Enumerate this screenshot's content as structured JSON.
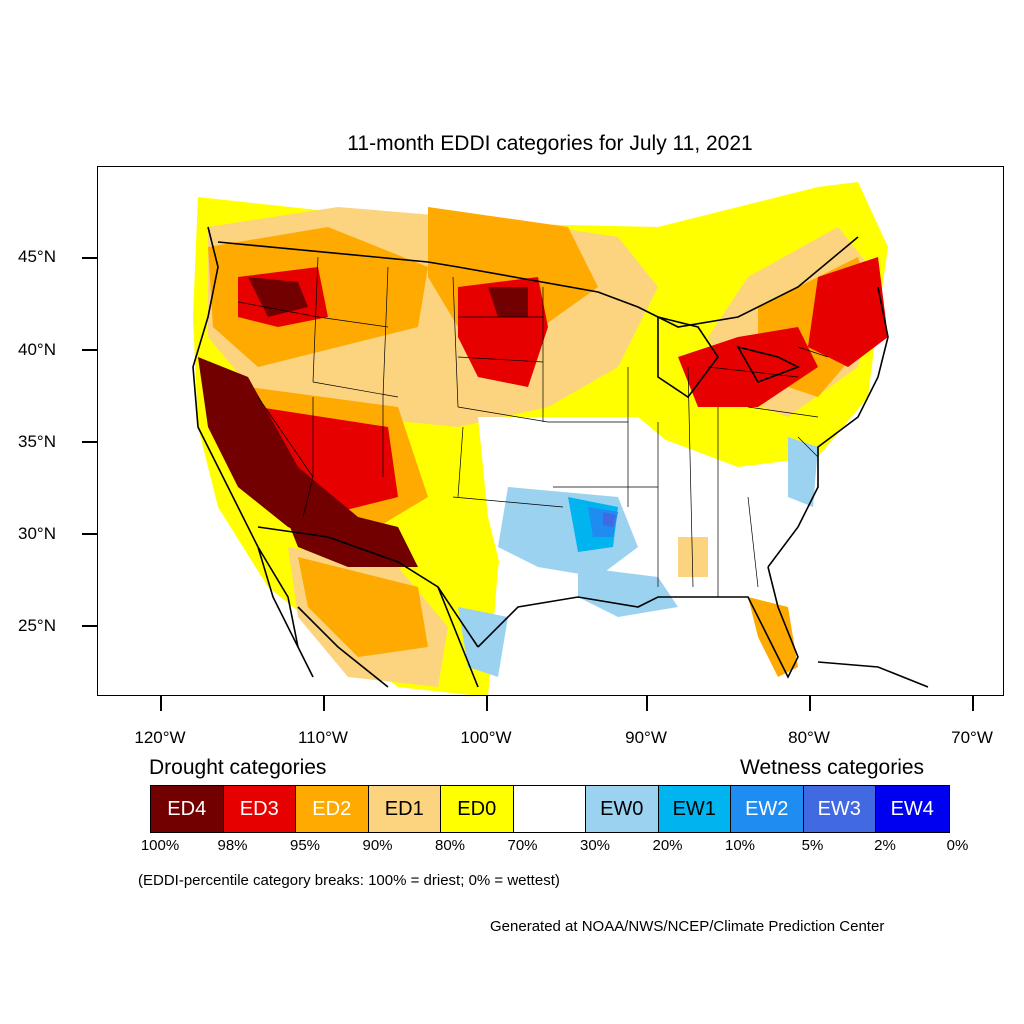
{
  "title": "11-month EDDI categories for July 11, 2021",
  "latitude_labels": [
    "45°N",
    "40°N",
    "35°N",
    "30°N",
    "25°N"
  ],
  "longitude_labels": [
    "120°W",
    "110°W",
    "100°W",
    "90°W",
    "80°W",
    "70°W"
  ],
  "legend": {
    "drought_title": "Drought categories",
    "wetness_title": "Wetness categories",
    "categories": [
      {
        "label": "ED4",
        "color": "#730000",
        "text_color": "#ffffff"
      },
      {
        "label": "ED3",
        "color": "#e60000",
        "text_color": "#ffffff"
      },
      {
        "label": "ED2",
        "color": "#ffaa00",
        "text_color": "#ffffff"
      },
      {
        "label": "ED1",
        "color": "#fcd37f",
        "text_color": "#000000"
      },
      {
        "label": "ED0",
        "color": "#ffff00",
        "text_color": "#000000"
      },
      {
        "label": "",
        "color": "#ffffff",
        "text_color": "#000000"
      },
      {
        "label": "EW0",
        "color": "#9bd2f0",
        "text_color": "#000000"
      },
      {
        "label": "EW1",
        "color": "#00b4f0",
        "text_color": "#000000"
      },
      {
        "label": "EW2",
        "color": "#1e8cf0",
        "text_color": "#ffffff"
      },
      {
        "label": "EW3",
        "color": "#4169e1",
        "text_color": "#ffffff"
      },
      {
        "label": "EW4",
        "color": "#0000f0",
        "text_color": "#ffffff"
      }
    ],
    "percentiles": [
      "100%",
      "98%",
      "95%",
      "90%",
      "80%",
      "70%",
      "30%",
      "20%",
      "10%",
      "5%",
      "2%",
      "0%"
    ]
  },
  "note": "(EDDI-percentile category breaks: 100% = driest; 0% = wettest)",
  "credit": "Generated at NOAA/NWS/NCEP/Climate Prediction Center"
}
